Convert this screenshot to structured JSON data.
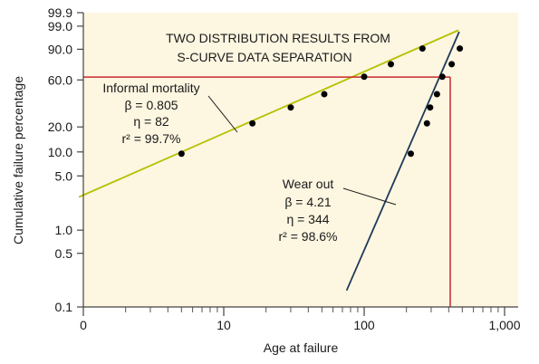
{
  "chart_data": {
    "type": "scatter",
    "title": "TWO DISTRIBUTION RESULTS FROM",
    "subtitle": "S-CURVE DATA SEPARATION",
    "xlabel": "Age at failure",
    "ylabel": "Cumulative failure percentage",
    "x_scale": "log",
    "y_scale": "weibull",
    "xlim": [
      1,
      1000
    ],
    "ylim": [
      0.1,
      99.9
    ],
    "x_ticks": [
      {
        "value": 1,
        "label": "0"
      },
      {
        "value": 10,
        "label": "10"
      },
      {
        "value": 100,
        "label": "100"
      },
      {
        "value": 1000,
        "label": "1,000"
      }
    ],
    "y_ticks": [
      {
        "value": 99.9,
        "label": "99.9"
      },
      {
        "value": 99.0,
        "label": "99.0"
      },
      {
        "value": 90.0,
        "label": "90.0"
      },
      {
        "value": 60.0,
        "label": "60.0"
      },
      {
        "value": 20.0,
        "label": "20.0"
      },
      {
        "value": 10.0,
        "label": "10.0"
      },
      {
        "value": 5.0,
        "label": "5.0"
      },
      {
        "value": 1.0,
        "label": "1.0"
      },
      {
        "value": 0.5,
        "label": "0.5"
      },
      {
        "value": 0.1,
        "label": "0.1"
      }
    ],
    "background_color": "#fdf6e1",
    "series": [
      {
        "name": "Informal mortality",
        "color": "#b5c100",
        "label_lines": [
          "Informal mortality",
          "β = 0.805",
          "η = 82",
          "r² = 99.7%"
        ],
        "beta": 0.805,
        "eta": 82,
        "r_squared": 99.7,
        "fit_x_range": [
          0.93,
          470
        ],
        "x": [
          5.0,
          16.0,
          30.0,
          52.0,
          100.0,
          155.0,
          260.0
        ],
        "y": [
          9.5,
          22.0,
          33.0,
          45.0,
          63.5,
          77.0,
          90.5
        ]
      },
      {
        "name": "Wear out",
        "color": "#1e3a5a",
        "label_lines": [
          "Wear out",
          "β = 4.21",
          "η = 344",
          "r² = 98.6%"
        ],
        "beta": 4.21,
        "eta": 344,
        "r_squared": 98.6,
        "fit_x_range": [
          75,
          475
        ],
        "x": [
          215.0,
          280.0,
          295.0,
          330.0,
          360.0,
          420.0,
          480.0
        ],
        "y": [
          9.5,
          22.0,
          33.0,
          45.0,
          63.5,
          77.0,
          90.5
        ]
      }
    ],
    "reference_lines": {
      "color": "#c8282d",
      "y": 63.2,
      "x": 410
    }
  }
}
